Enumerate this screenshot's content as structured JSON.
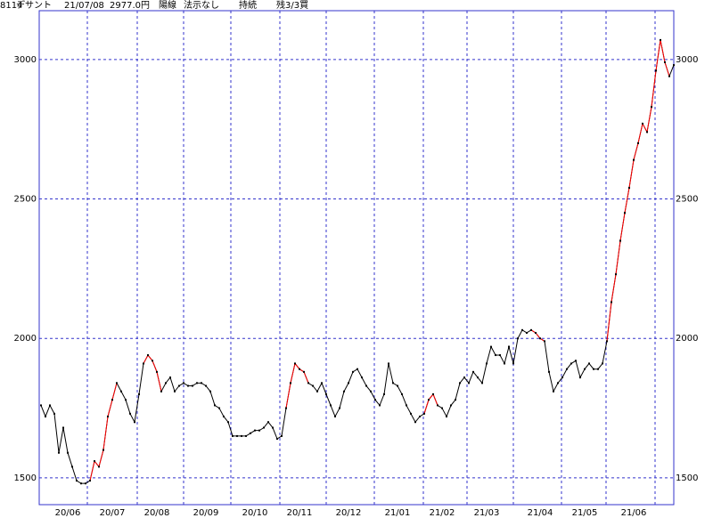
{
  "chart_data": {
    "type": "line",
    "header": [
      "8114",
      "デサント",
      "21/07/08",
      "2977.0円",
      "陽線",
      "法示なし",
      "持続",
      "残3/3買"
    ],
    "categories": [
      null,
      null,
      null,
      null,
      null,
      null,
      "20/06",
      null,
      null,
      null,
      null,
      null,
      null,
      null,
      null,
      null,
      "20/07",
      null,
      null,
      null,
      null,
      null,
      null,
      null,
      null,
      null,
      "20/08",
      null,
      null,
      null,
      null,
      null,
      null,
      null,
      null,
      null,
      null,
      "20/09",
      null,
      null,
      null,
      null,
      null,
      null,
      null,
      null,
      null,
      null,
      "20/10",
      null,
      null,
      null,
      null,
      null,
      null,
      null,
      null,
      null,
      "20/11",
      null,
      null,
      null,
      null,
      null,
      null,
      null,
      null,
      null,
      null,
      "20/12",
      null,
      null,
      null,
      null,
      null,
      null,
      null,
      null,
      null,
      null,
      "21/01",
      null,
      null,
      null,
      null,
      null,
      null,
      null,
      null,
      null,
      "21/02",
      null,
      null,
      null,
      null,
      null,
      null,
      null,
      null,
      null,
      "21/03",
      null,
      null,
      null,
      null,
      null,
      null,
      null,
      null,
      null,
      null,
      null,
      "21/04",
      null,
      null,
      null,
      null,
      null,
      null,
      null,
      null,
      null,
      "21/05",
      null,
      null,
      null,
      null,
      null,
      null,
      null,
      null,
      null,
      null,
      "21/06",
      null,
      null,
      null,
      null,
      null,
      null,
      null,
      null,
      null
    ],
    "series": [
      {
        "color": "#000000",
        "values": [
          1760,
          1720,
          1760,
          1730,
          1590,
          1680,
          1590,
          1540,
          1490,
          1480,
          1480,
          1490,
          1560,
          1540,
          1600,
          1720,
          1780,
          1840,
          1810,
          1780,
          1730,
          1700,
          1800,
          1910,
          1940,
          1920,
          1880,
          1810,
          1840,
          1860,
          1810,
          1830,
          1840,
          1830,
          1830,
          1840,
          1840,
          1830,
          1810,
          1760,
          1750,
          1720,
          1700,
          1650,
          1650,
          1650,
          1650,
          1660,
          1670,
          1670,
          1680,
          1700,
          1680,
          1640,
          1650,
          1750,
          1840,
          1910,
          1890,
          1880,
          1840,
          1830,
          1810,
          1840,
          1800,
          1760,
          1720,
          1750,
          1810,
          1840,
          1880,
          1890,
          1860,
          1830,
          1810,
          1780,
          1760,
          1800,
          1910,
          1840,
          1830,
          1800,
          1760,
          1730,
          1700,
          1720,
          1730,
          1780,
          1800,
          1760,
          1750,
          1720,
          1760,
          1780,
          1840,
          1860,
          1840,
          1880,
          1860,
          1840,
          1910,
          1970,
          1940,
          1940,
          1910,
          1970,
          1910,
          2000,
          2030,
          2020,
          2030,
          2020,
          2000,
          1990,
          1880,
          1810,
          1840,
          1860,
          1890,
          1910,
          1920,
          1860,
          1890,
          1910,
          1890,
          1890,
          1910,
          1990,
          2130,
          2230,
          2350,
          2450,
          2540,
          2640,
          2700,
          2770,
          2740,
          2830,
          2960,
          3070,
          2990,
          2940,
          2980
        ]
      }
    ],
    "highlight": {
      "color": "#ff0000",
      "ranges": [
        [
          11,
          17
        ],
        [
          23,
          27
        ],
        [
          55,
          60
        ],
        [
          86,
          89
        ],
        [
          110,
          113
        ],
        [
          127,
          141
        ]
      ]
    },
    "ylim": [
      1404,
      3175
    ],
    "yticks": [
      1500,
      2000,
      2500,
      3000
    ],
    "grid": true
  }
}
